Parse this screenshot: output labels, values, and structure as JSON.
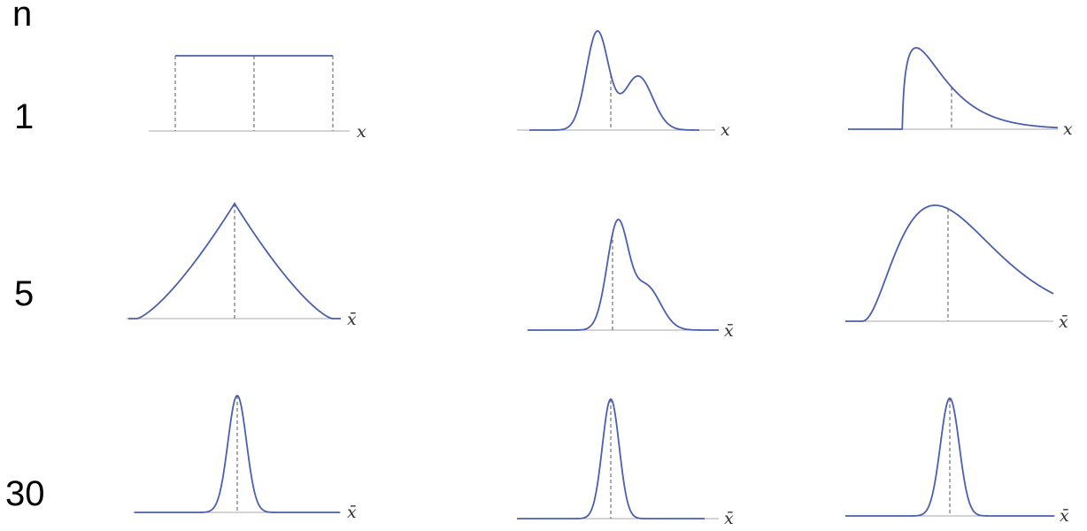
{
  "header_label": "n",
  "rows": [
    {
      "n": "1",
      "axis_label": "x"
    },
    {
      "n": "5",
      "axis_label": "x̄"
    },
    {
      "n": "30",
      "axis_label": "x̄"
    }
  ],
  "chart_data": {
    "type": "line",
    "title": "",
    "rows_n": [
      1,
      5,
      30
    ],
    "columns": [
      "uniform",
      "bimodal",
      "right-skewed"
    ],
    "line_color": "#4a5fae",
    "mean_marker": "dashed vertical line at mean",
    "panels": [
      {
        "n": 1,
        "shape": "uniform",
        "axis_label": "x",
        "dashed_lines": "min, mean, max"
      },
      {
        "n": 1,
        "shape": "bimodal",
        "axis_label": "x",
        "dashed_lines": "mean"
      },
      {
        "n": 1,
        "shape": "right-skewed",
        "axis_label": "x",
        "dashed_lines": "mean"
      },
      {
        "n": 5,
        "shape": "triangular-like",
        "axis_label": "x̄",
        "dashed_lines": "mean"
      },
      {
        "n": 5,
        "shape": "skewed with shoulder",
        "axis_label": "x̄",
        "dashed_lines": "mean"
      },
      {
        "n": 5,
        "shape": "mildly right-skewed",
        "axis_label": "x̄",
        "dashed_lines": "mean"
      },
      {
        "n": 30,
        "shape": "approximately normal",
        "axis_label": "x̄",
        "dashed_lines": "mean"
      },
      {
        "n": 30,
        "shape": "approximately normal",
        "axis_label": "x̄",
        "dashed_lines": "mean"
      },
      {
        "n": 30,
        "shape": "approximately normal",
        "axis_label": "x̄",
        "dashed_lines": "mean"
      }
    ]
  }
}
